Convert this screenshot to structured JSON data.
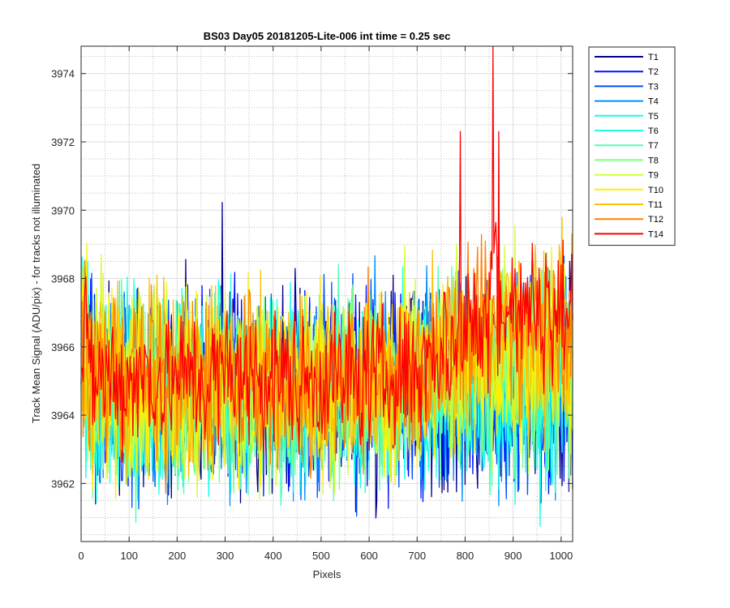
{
  "chart_data": {
    "type": "line",
    "title": "BS03 Day05 20181205-Lite-006 int time = 0.25 sec",
    "xlabel": "Pixels",
    "ylabel": "Track Mean Signal (ADU/pix) - for tracks not illuminated",
    "xlim": [
      0,
      1024
    ],
    "ylim": [
      3960.3,
      3974.8
    ],
    "xticks": [
      0,
      100,
      200,
      300,
      400,
      500,
      600,
      700,
      800,
      900,
      1000
    ],
    "yticks": [
      3962,
      3964,
      3966,
      3968,
      3970,
      3972,
      3974
    ],
    "grid": true,
    "minor_grid": true,
    "legend_position": "outside-top-right",
    "series": [
      {
        "name": "T1",
        "color": "#00008f",
        "base": 3964.8,
        "amp": 1.4
      },
      {
        "name": "T2",
        "color": "#0010ff",
        "base": 3964.8,
        "amp": 1.4
      },
      {
        "name": "T3",
        "color": "#0050ff",
        "base": 3964.8,
        "amp": 1.4
      },
      {
        "name": "T4",
        "color": "#0090ff",
        "base": 3964.7,
        "amp": 1.4
      },
      {
        "name": "T5",
        "color": "#10ffef",
        "base": 3964.7,
        "amp": 1.4
      },
      {
        "name": "T6",
        "color": "#20ffdf",
        "base": 3964.7,
        "amp": 1.4
      },
      {
        "name": "T7",
        "color": "#50ffaf",
        "base": 3964.8,
        "amp": 1.4
      },
      {
        "name": "T8",
        "color": "#80ff80",
        "base": 3964.8,
        "amp": 1.4
      },
      {
        "name": "T9",
        "color": "#cfff30",
        "base": 3964.9,
        "amp": 1.4
      },
      {
        "name": "T10",
        "color": "#ffef00",
        "base": 3964.9,
        "amp": 1.4
      },
      {
        "name": "T11",
        "color": "#ffbf00",
        "base": 3965.0,
        "amp": 1.3
      },
      {
        "name": "T12",
        "color": "#ff8000",
        "base": 3965.1,
        "amp": 1.2
      },
      {
        "name": "T14",
        "color": "#ff0000",
        "base": 3965.1,
        "amp": 1.0
      }
    ]
  }
}
